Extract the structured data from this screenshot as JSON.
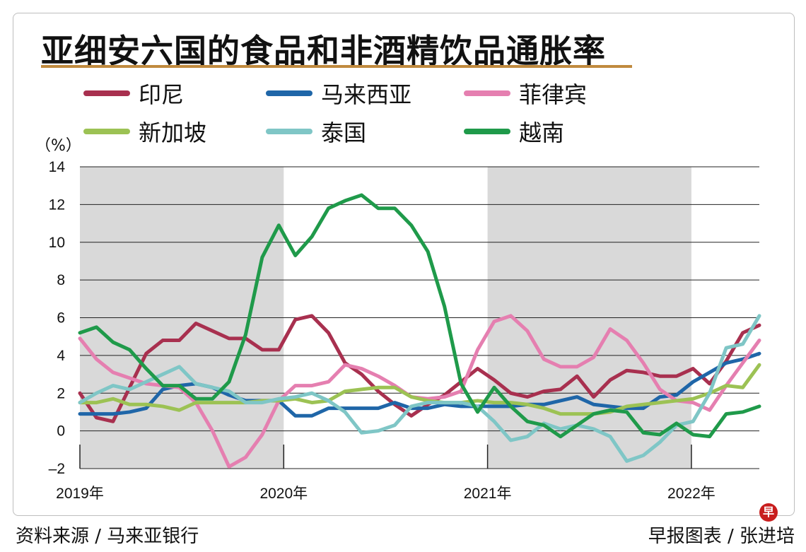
{
  "title": "亚细安六国的食品和非酒精饮品通胀率",
  "unit_label": "（%）",
  "footer": {
    "source": "资料来源 / 马来亚银行",
    "credit": "早报图表 / 张进培"
  },
  "logo_text": "早",
  "legend": [
    {
      "name": "印尼",
      "color": "#a8304f"
    },
    {
      "name": "马来西亚",
      "color": "#1f66a8"
    },
    {
      "name": "菲律宾",
      "color": "#e57fb0"
    },
    {
      "name": "新加坡",
      "color": "#9cc254"
    },
    {
      "name": "泰国",
      "color": "#7fc6c6"
    },
    {
      "name": "越南",
      "color": "#1f9a4a"
    }
  ],
  "chart_data": {
    "type": "line",
    "title": "亚细安六国的食品和非酒精饮品通胀率",
    "ylabel": "（%）",
    "ylim": [
      -2,
      14
    ],
    "yticks": [
      14,
      12,
      10,
      8,
      6,
      4,
      2,
      0,
      -2
    ],
    "xlim": [
      0,
      40
    ],
    "x_tick_labels": [
      {
        "x": 0,
        "label": "2019年"
      },
      {
        "x": 12,
        "label": "2020年"
      },
      {
        "x": 24,
        "label": "2021年"
      },
      {
        "x": 36,
        "label": "2022年"
      }
    ],
    "shaded_bands": [
      [
        0,
        12
      ],
      [
        24,
        36
      ]
    ],
    "grid": true,
    "legend_position": "top",
    "series": [
      {
        "name": "印尼",
        "color": "#a8304f",
        "values": [
          2.0,
          0.7,
          0.5,
          2.3,
          4.1,
          4.8,
          4.8,
          5.7,
          5.3,
          4.9,
          4.9,
          4.3,
          4.3,
          5.9,
          6.1,
          5.2,
          3.6,
          3.0,
          2.1,
          1.4,
          0.8,
          1.4,
          1.9,
          2.6,
          3.3,
          2.7,
          2.0,
          1.8,
          2.1,
          2.2,
          2.9,
          1.8,
          2.7,
          3.2,
          3.1,
          2.9,
          2.9,
          3.3,
          2.5,
          3.7,
          5.2,
          5.6
        ]
      },
      {
        "name": "马来西亚",
        "color": "#1f66a8",
        "values": [
          0.9,
          0.9,
          0.9,
          1.0,
          1.2,
          2.2,
          2.4,
          2.5,
          2.3,
          1.9,
          1.6,
          1.6,
          1.6,
          0.8,
          0.8,
          1.2,
          1.2,
          1.2,
          1.2,
          1.5,
          1.2,
          1.2,
          1.4,
          1.3,
          1.3,
          1.3,
          1.3,
          1.4,
          1.4,
          1.6,
          1.8,
          1.4,
          1.3,
          1.2,
          1.2,
          1.8,
          1.9,
          2.6,
          3.1,
          3.6,
          3.8,
          4.1
        ]
      },
      {
        "name": "菲律宾",
        "color": "#e57fb0",
        "values": [
          4.9,
          3.8,
          3.1,
          2.8,
          2.5,
          2.4,
          2.3,
          1.5,
          0.0,
          -1.9,
          -1.4,
          -0.2,
          1.6,
          2.4,
          2.4,
          2.6,
          3.5,
          3.3,
          2.9,
          2.4,
          1.8,
          1.7,
          1.8,
          2.1,
          4.3,
          5.8,
          6.1,
          5.3,
          3.8,
          3.4,
          3.4,
          3.9,
          5.4,
          4.8,
          3.6,
          2.2,
          1.6,
          1.5,
          1.1,
          2.4,
          3.6,
          4.8
        ]
      },
      {
        "name": "新加坡",
        "color": "#9cc254",
        "values": [
          1.5,
          1.5,
          1.7,
          1.4,
          1.4,
          1.3,
          1.1,
          1.5,
          1.5,
          1.5,
          1.5,
          1.6,
          1.6,
          1.7,
          1.5,
          1.6,
          2.1,
          2.2,
          2.3,
          2.3,
          1.8,
          1.6,
          1.5,
          1.5,
          1.6,
          1.5,
          1.5,
          1.4,
          1.2,
          0.9,
          0.9,
          0.9,
          1.0,
          1.3,
          1.4,
          1.5,
          1.6,
          1.7,
          2.0,
          2.4,
          2.3,
          3.5
        ]
      },
      {
        "name": "泰国",
        "color": "#7fc6c6",
        "values": [
          1.5,
          2.0,
          2.4,
          2.2,
          2.6,
          3.0,
          3.4,
          2.5,
          2.3,
          2.1,
          1.5,
          1.5,
          1.7,
          1.8,
          2.0,
          1.6,
          1.0,
          -0.1,
          0.0,
          0.3,
          1.3,
          1.5,
          1.5,
          1.5,
          1.3,
          0.5,
          -0.5,
          -0.3,
          0.4,
          0.1,
          0.3,
          0.1,
          -0.3,
          -1.6,
          -1.3,
          -0.6,
          0.3,
          0.5,
          2.0,
          4.4,
          4.6,
          6.1
        ]
      },
      {
        "name": "越南",
        "color": "#1f9a4a",
        "values": [
          5.2,
          5.5,
          4.7,
          4.3,
          3.3,
          2.4,
          2.4,
          1.7,
          1.7,
          2.6,
          5.1,
          9.2,
          10.9,
          9.3,
          10.3,
          11.8,
          12.2,
          12.5,
          11.8,
          11.8,
          10.9,
          9.5,
          6.6,
          2.5,
          1.0,
          2.3,
          1.3,
          0.5,
          0.3,
          -0.3,
          0.3,
          0.9,
          1.1,
          1.0,
          -0.1,
          -0.2,
          0.4,
          -0.2,
          -0.3,
          0.9,
          1.0,
          1.3
        ]
      }
    ]
  }
}
